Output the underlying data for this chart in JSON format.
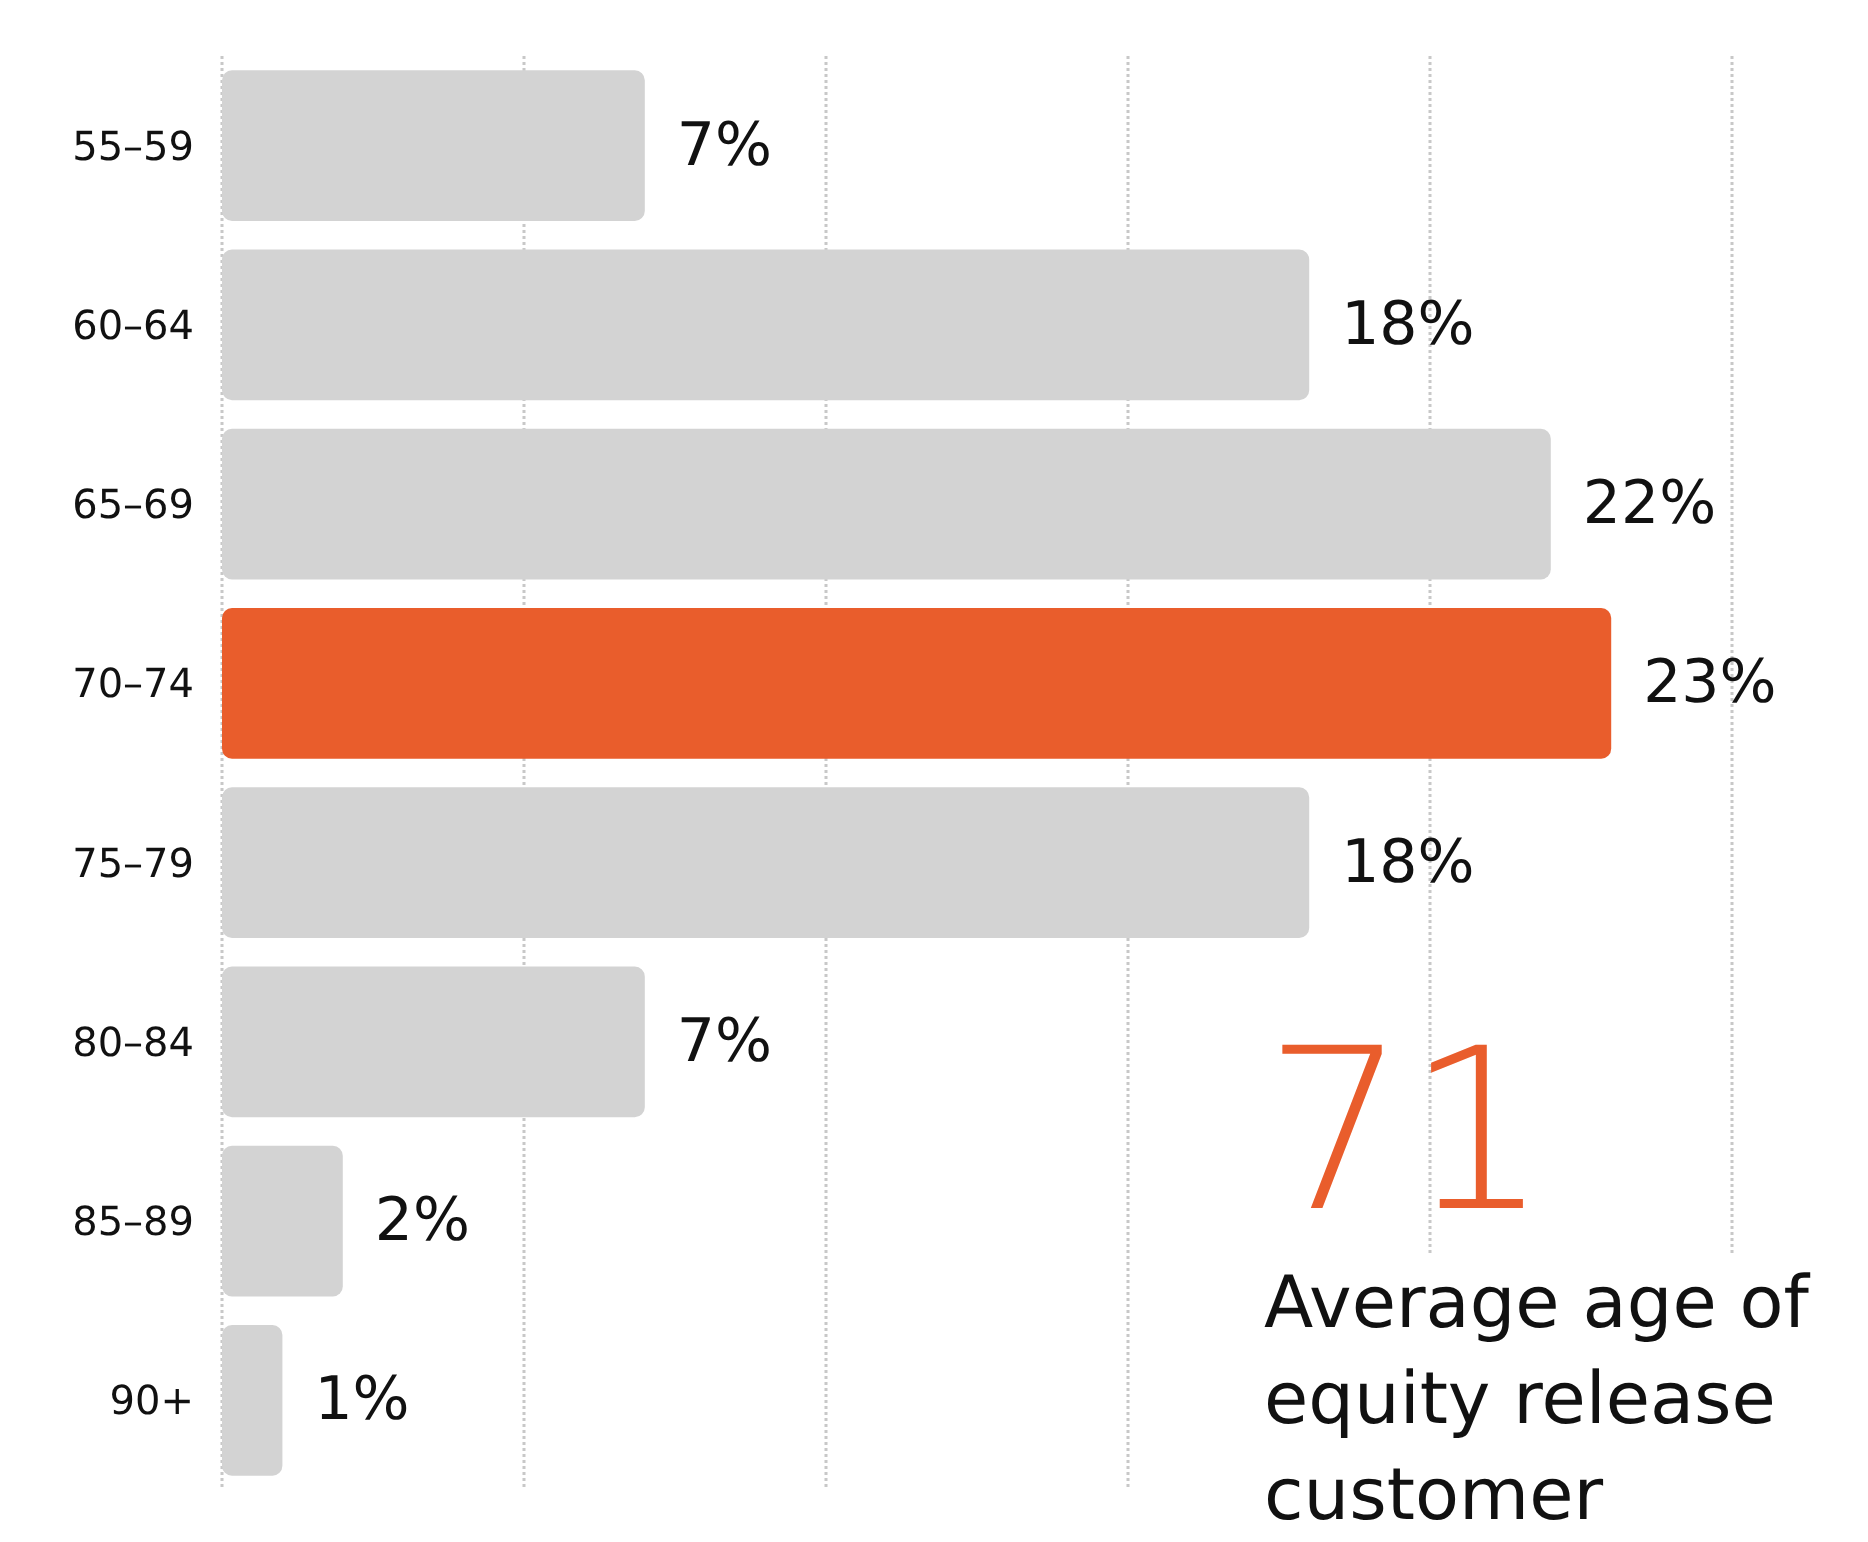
{
  "chart_data": {
    "type": "bar",
    "orientation": "horizontal",
    "categories": [
      "55–59",
      "60–64",
      "65–69",
      "70–74",
      "75–79",
      "80–84",
      "85–89",
      "90+"
    ],
    "values": [
      7,
      18,
      22,
      23,
      18,
      7,
      2,
      1
    ],
    "colors": [
      "#d3d3d3",
      "#d3d3d3",
      "#d3d3d3",
      "#e95d2c",
      "#d3d3d3",
      "#d3d3d3",
      "#d3d3d3",
      "#d3d3d3"
    ],
    "xlim": [
      0,
      25
    ],
    "xticks": [
      {
        "value": 0,
        "label": null
      },
      {
        "value": 5,
        "label": null
      },
      {
        "value": 10,
        "label": null
      },
      {
        "value": 15,
        "label": null
      },
      {
        "value": 20,
        "label": null
      },
      {
        "value": 25,
        "label": null
      }
    ],
    "tick_labels": "y",
    "grid": "x",
    "data_labels": true,
    "value_labels": [
      "7%",
      "18%",
      "22%",
      "23%",
      "18%",
      "7%",
      "2%",
      "1%"
    ],
    "annotations": [
      "71",
      "Average age of equity release customer"
    ]
  }
}
